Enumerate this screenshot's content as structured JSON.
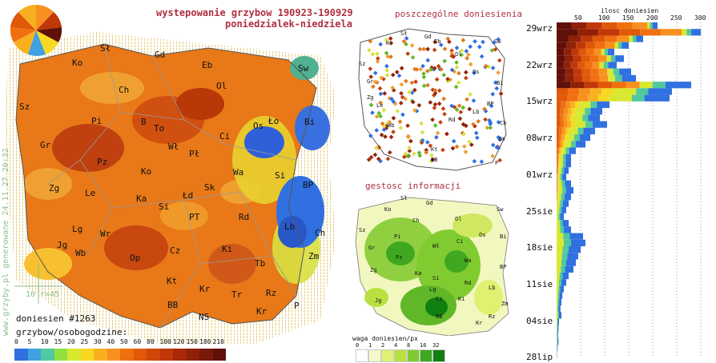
{
  "header": {
    "title": "wystepowanie grzybow 190923-190929",
    "subtitle": "poniedzialek-niedziela"
  },
  "panels": {
    "reports_title": "poszczególne doniesienia",
    "density_title": "gestosc informacji",
    "density_legend_title": "waga doniesien/px",
    "density_legend_values": [
      "0",
      "1",
      "2",
      "4",
      "8",
      "16",
      "32"
    ],
    "density_legend_colors": [
      "#ffffff",
      "#f5f8c8",
      "#e0f070",
      "#b8e040",
      "#80cc30",
      "#40a820",
      "#108010"
    ]
  },
  "watermark": "www.grzyby.pl generowane 24.11.27 20:32",
  "scale": {
    "label": "10 r=45"
  },
  "stats": {
    "count_label": "doniesien #1263",
    "legend_title": "grzybow/osobogodzine:"
  },
  "main_legend": {
    "values": [
      "0",
      "5",
      "10",
      "15",
      "20",
      "25",
      "30",
      "40",
      "50",
      "60",
      "80",
      "100",
      "120",
      "150",
      "180",
      "210"
    ],
    "colors": [
      "#3070e0",
      "#40a0e0",
      "#50c8a0",
      "#90e040",
      "#d8e830",
      "#f8d820",
      "#f8b020",
      "#f89020",
      "#f07010",
      "#e05808",
      "#d04808",
      "#c03808",
      "#a82808",
      "#902008",
      "#781808",
      "#601008"
    ]
  },
  "regions_big": [
    {
      "code": "Sł"
    },
    {
      "code": "Gd"
    },
    {
      "code": "Eb"
    },
    {
      "code": "Sw"
    },
    {
      "code": "Ko"
    },
    {
      "code": "Ch"
    },
    {
      "code": "Ol"
    },
    {
      "code": "Sz"
    },
    {
      "code": "Pi"
    },
    {
      "code": "B"
    },
    {
      "code": "To"
    },
    {
      "code": "Ci"
    },
    {
      "code": "Os"
    },
    {
      "code": "Ło"
    },
    {
      "code": "Bi"
    },
    {
      "code": "Gr"
    },
    {
      "code": "Pz"
    },
    {
      "code": "Wł"
    },
    {
      "code": "Pł"
    },
    {
      "code": "Ko"
    },
    {
      "code": "Wa"
    },
    {
      "code": "Si"
    },
    {
      "code": "Zg"
    },
    {
      "code": "Le"
    },
    {
      "code": "Ka"
    },
    {
      "code": "Łd"
    },
    {
      "code": "Sk"
    },
    {
      "code": "BP"
    },
    {
      "code": "Si"
    },
    {
      "code": "Lg"
    },
    {
      "code": "Wr"
    },
    {
      "code": "PT"
    },
    {
      "code": "Rd"
    },
    {
      "code": "Lb"
    },
    {
      "code": "Ch"
    },
    {
      "code": "Jg"
    },
    {
      "code": "Wb"
    },
    {
      "code": "Op"
    },
    {
      "code": "Cz"
    },
    {
      "code": "Ki"
    },
    {
      "code": "Zm"
    },
    {
      "code": "Kt"
    },
    {
      "code": "Tb"
    },
    {
      "code": "Kr"
    },
    {
      "code": "Tr"
    },
    {
      "code": "Rz"
    },
    {
      "code": "BB"
    },
    {
      "code": "Kr"
    },
    {
      "code": "P"
    },
    {
      "code": "NS"
    }
  ],
  "histogram": {
    "axis_title": "ilosc doniesien",
    "ticks": [
      "50",
      "100",
      "150",
      "200",
      "250",
      "300"
    ],
    "dates": [
      "29wrz",
      "22wrz",
      "15wrz",
      "08wrz",
      "01wrz",
      "25sie",
      "18sie",
      "11sie",
      "04sie",
      "28lip"
    ]
  }
}
